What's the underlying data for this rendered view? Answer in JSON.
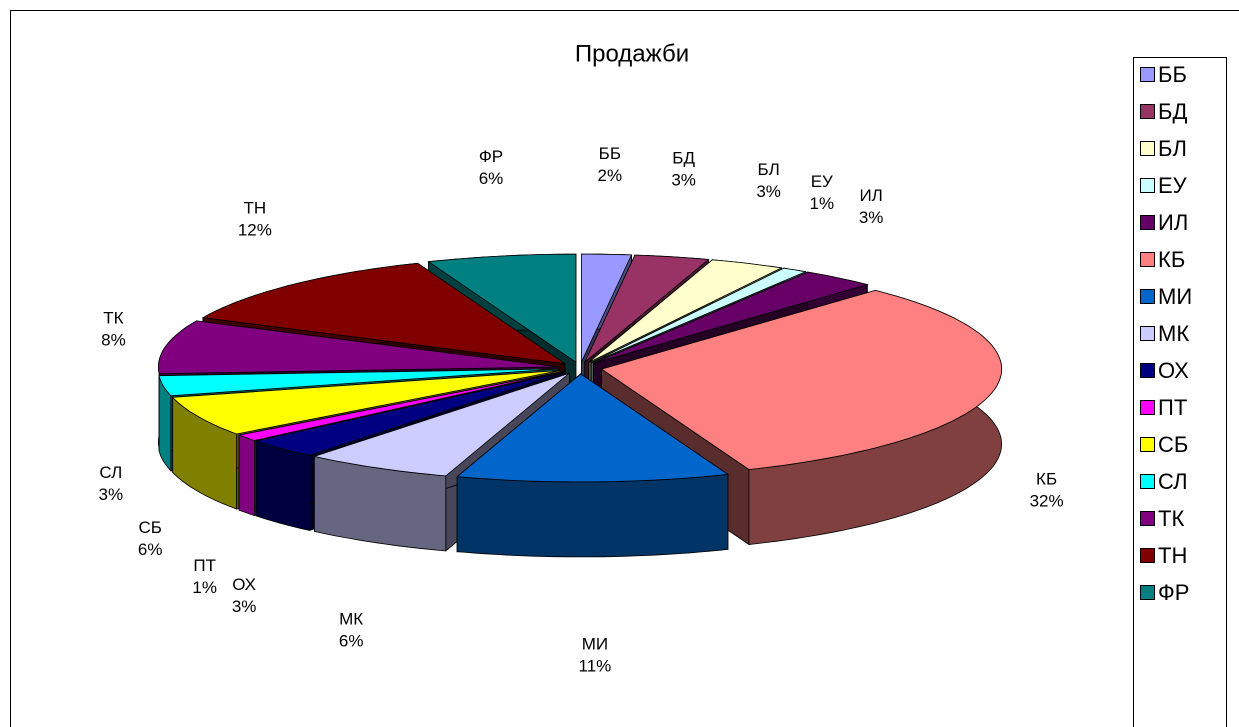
{
  "chart_data": {
    "type": "pie3d",
    "title": "Продажби",
    "categories": [
      "ББ",
      "БД",
      "БЛ",
      "ЕУ",
      "ИЛ",
      "КБ",
      "МИ",
      "МК",
      "ОХ",
      "ПТ",
      "СБ",
      "СЛ",
      "ТК",
      "ТН",
      "ФР"
    ],
    "values": [
      2,
      3,
      3,
      1,
      3,
      32,
      11,
      6,
      3,
      1,
      6,
      3,
      8,
      12,
      6
    ],
    "value_labels": [
      "2%",
      "3%",
      "3%",
      "1%",
      "3%",
      "32%",
      "11%",
      "6%",
      "3%",
      "1%",
      "6%",
      "3%",
      "8%",
      "12%",
      "6%"
    ],
    "colors": [
      "#9999ff",
      "#993366",
      "#ffffcc",
      "#ccffff",
      "#660066",
      "#ff8080",
      "#0066cc",
      "#ccccff",
      "#000080",
      "#ff00ff",
      "#ffff00",
      "#00ffff",
      "#800080",
      "#800000",
      "#008080"
    ],
    "legend": "right"
  }
}
